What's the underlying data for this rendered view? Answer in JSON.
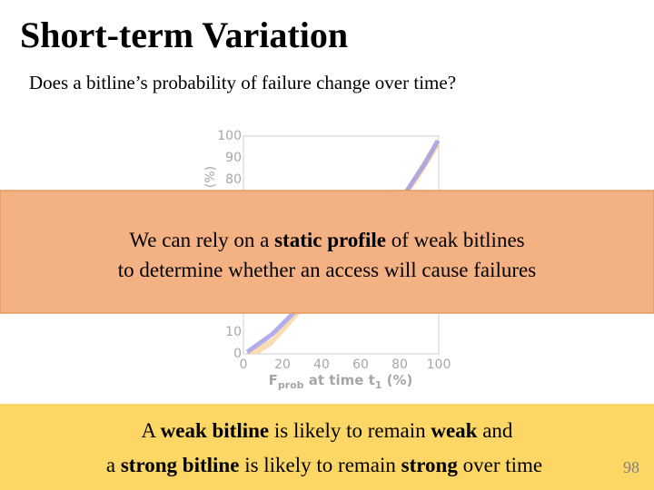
{
  "title": "Short-term Variation",
  "subtitle": "Does a bitline’s probability of failure change over time?",
  "figure": {
    "y_label": "(%)",
    "y_ticks": [
      0,
      10,
      80,
      90,
      100
    ],
    "x_ticks": [
      0,
      20,
      40,
      60,
      80,
      100
    ],
    "x_label": {
      "main": "F",
      "main_sub": "prob",
      "rest": " at time t",
      "rest_sub": "1",
      "unit": " (%)"
    }
  },
  "callout": {
    "line1": [
      "We can rely on a ",
      "static profile",
      " of weak bitlines"
    ],
    "line2": "to determine whether an access will cause failures"
  },
  "conclusion": {
    "line1": [
      "A ",
      "weak bitline",
      " is likely to remain ",
      "weak",
      " and"
    ],
    "line2": [
      "a ",
      "strong bitline",
      " is likely to remain ",
      "strong",
      " over time"
    ]
  },
  "page_number": "98"
}
